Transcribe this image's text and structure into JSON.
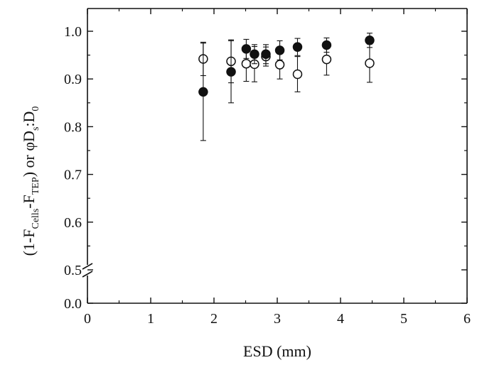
{
  "chart_data": {
    "type": "scatter",
    "xlabel": "ESD (mm)",
    "ylabel_parts": {
      "p1": "(1-F",
      "s1": "Cells",
      "p2": "-F",
      "s2": "TEP",
      "p3": ") or ",
      "phi": "φ",
      "p4": "D",
      "s3": "s",
      "p5": ":D",
      "s4": "0"
    },
    "xlim": [
      0,
      6
    ],
    "x_ticks": [
      "0",
      "1",
      "2",
      "3",
      "4",
      "5",
      "6"
    ],
    "y_ticks": [
      "0.0",
      "0.5",
      "0.6",
      "0.7",
      "0.8",
      "0.9",
      "1.0"
    ],
    "y_axis_break": true,
    "series": [
      {
        "marker": "filled-circle",
        "points": [
          {
            "x": 1.83,
            "y": 0.873,
            "err_low": 0.102,
            "err_high": 0.102
          },
          {
            "x": 2.27,
            "y": 0.915,
            "err_low": 0.065,
            "err_high": 0.065
          },
          {
            "x": 2.51,
            "y": 0.963,
            "err_low": 0.02,
            "err_high": 0.02
          },
          {
            "x": 2.64,
            "y": 0.952,
            "err_low": 0.02,
            "err_high": 0.02
          },
          {
            "x": 2.82,
            "y": 0.952,
            "err_low": 0.02,
            "err_high": 0.02
          },
          {
            "x": 3.04,
            "y": 0.96,
            "err_low": 0.02,
            "err_high": 0.02
          },
          {
            "x": 3.32,
            "y": 0.967,
            "err_low": 0.018,
            "err_high": 0.018
          },
          {
            "x": 3.78,
            "y": 0.971,
            "err_low": 0.015,
            "err_high": 0.015
          },
          {
            "x": 4.46,
            "y": 0.981,
            "err_low": 0.015,
            "err_high": 0.015
          }
        ]
      },
      {
        "marker": "open-circle",
        "points": [
          {
            "x": 1.83,
            "y": 0.942,
            "err_low": 0.035,
            "err_high": 0.035
          },
          {
            "x": 2.27,
            "y": 0.937,
            "err_low": 0.045,
            "err_high": 0.045
          },
          {
            "x": 2.51,
            "y": 0.932,
            "err_low": 0.037,
            "err_high": 0.037
          },
          {
            "x": 2.64,
            "y": 0.931,
            "err_low": 0.037,
            "err_high": 0.037
          },
          {
            "x": 2.82,
            "y": 0.947,
            "err_low": 0.02,
            "err_high": 0.02
          },
          {
            "x": 3.04,
            "y": 0.93,
            "err_low": 0.03,
            "err_high": 0.03
          },
          {
            "x": 3.32,
            "y": 0.91,
            "err_low": 0.037,
            "err_high": 0.037
          },
          {
            "x": 3.78,
            "y": 0.941,
            "err_low": 0.033,
            "err_high": 0.033
          },
          {
            "x": 4.46,
            "y": 0.933,
            "err_low": 0.04,
            "err_high": 0.04
          }
        ]
      }
    ]
  }
}
